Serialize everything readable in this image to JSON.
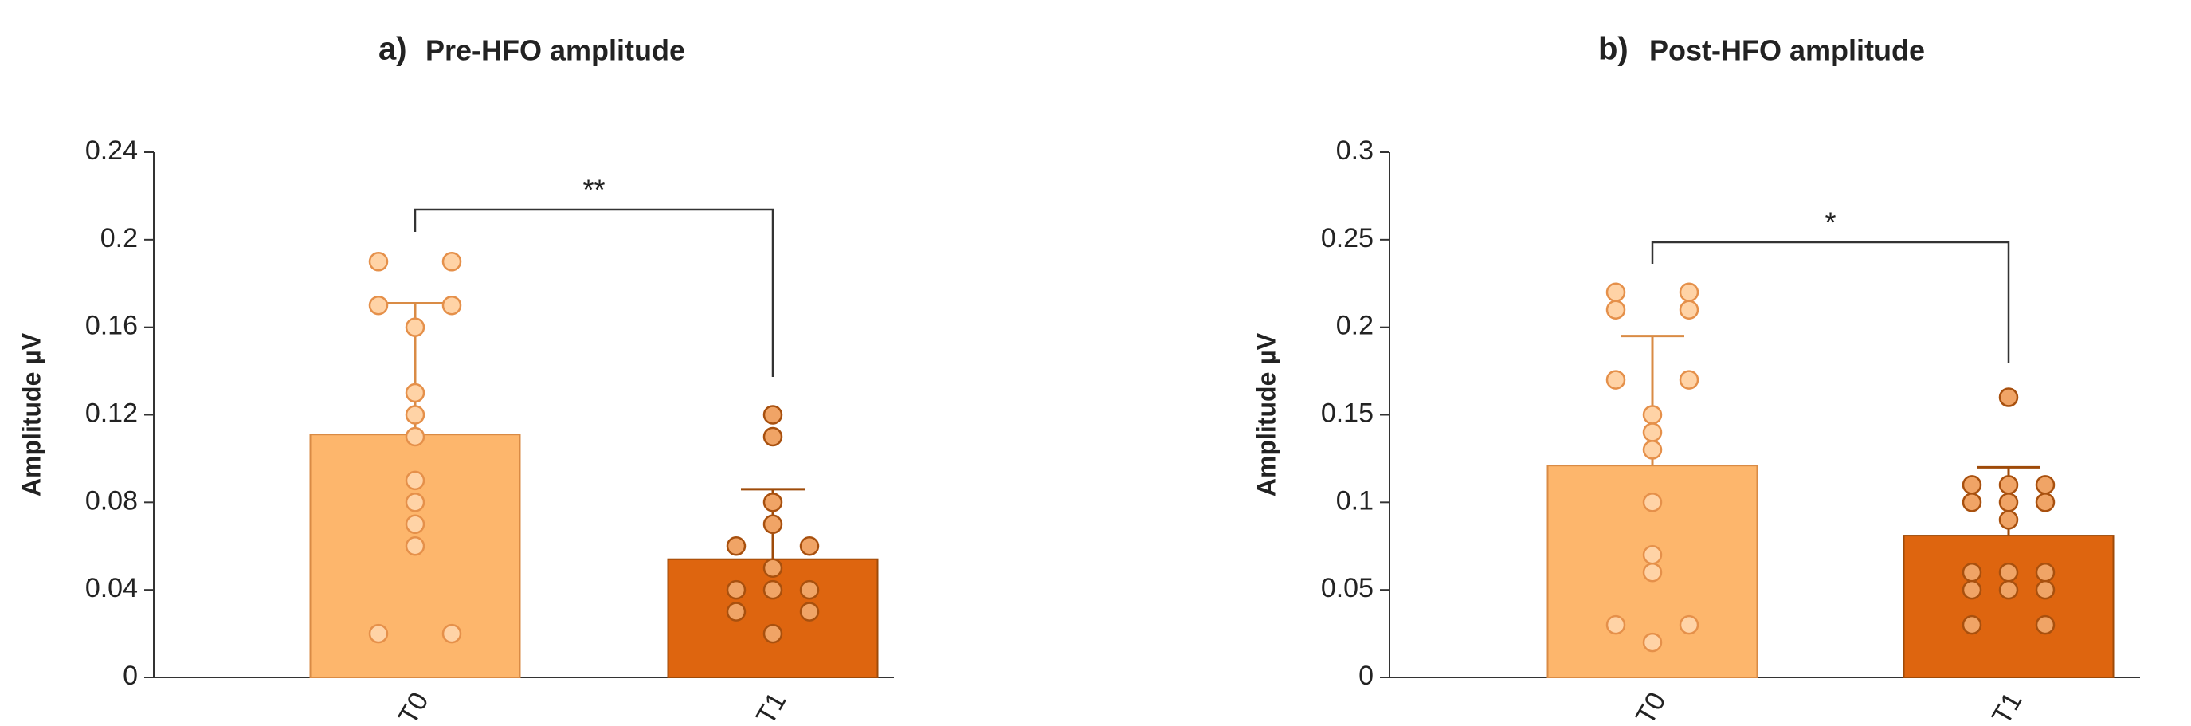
{
  "chart_data": [
    {
      "type": "bar",
      "panel_label": "a)",
      "title": "Pre-HFO amplitude",
      "ylabel": "Amplitude µV",
      "categories": [
        "T0",
        "T1"
      ],
      "values": [
        0.111,
        0.054
      ],
      "errors": [
        0.06,
        0.032
      ],
      "points": [
        [
          0.19,
          0.19,
          0.17,
          0.17,
          0.16,
          0.13,
          0.12,
          0.11,
          0.09,
          0.08,
          0.07,
          0.06,
          0.02,
          0.02
        ],
        [
          0.12,
          0.11,
          0.08,
          0.07,
          0.06,
          0.06,
          0.05,
          0.04,
          0.04,
          0.04,
          0.03,
          0.03,
          0.02
        ]
      ],
      "colors": [
        "#fdb66c",
        "#de650f"
      ],
      "point_colors": [
        "#ffd3a6",
        "#f0a466"
      ],
      "ylim": [
        0,
        0.24
      ],
      "yticks": [
        0,
        0.04,
        0.08,
        0.12,
        0.16,
        0.2,
        0.24
      ],
      "annotation": "**"
    },
    {
      "type": "bar",
      "panel_label": "b)",
      "title": "Post-HFO amplitude",
      "ylabel": "Amplitude µV",
      "categories": [
        "T0",
        "T1"
      ],
      "values": [
        0.121,
        0.081
      ],
      "errors": [
        0.074,
        0.039
      ],
      "points": [
        [
          0.22,
          0.22,
          0.21,
          0.21,
          0.17,
          0.17,
          0.15,
          0.14,
          0.13,
          0.1,
          0.07,
          0.06,
          0.03,
          0.03,
          0.02
        ],
        [
          0.16,
          0.11,
          0.11,
          0.11,
          0.1,
          0.1,
          0.1,
          0.09,
          0.06,
          0.06,
          0.06,
          0.05,
          0.05,
          0.05,
          0.03,
          0.03
        ]
      ],
      "colors": [
        "#fdb66c",
        "#de650f"
      ],
      "point_colors": [
        "#ffd3a6",
        "#f0a466"
      ],
      "ylim": [
        0,
        0.3
      ],
      "yticks": [
        0,
        0.05,
        0.1,
        0.15,
        0.2,
        0.25,
        0.3
      ],
      "annotation": "*"
    }
  ]
}
